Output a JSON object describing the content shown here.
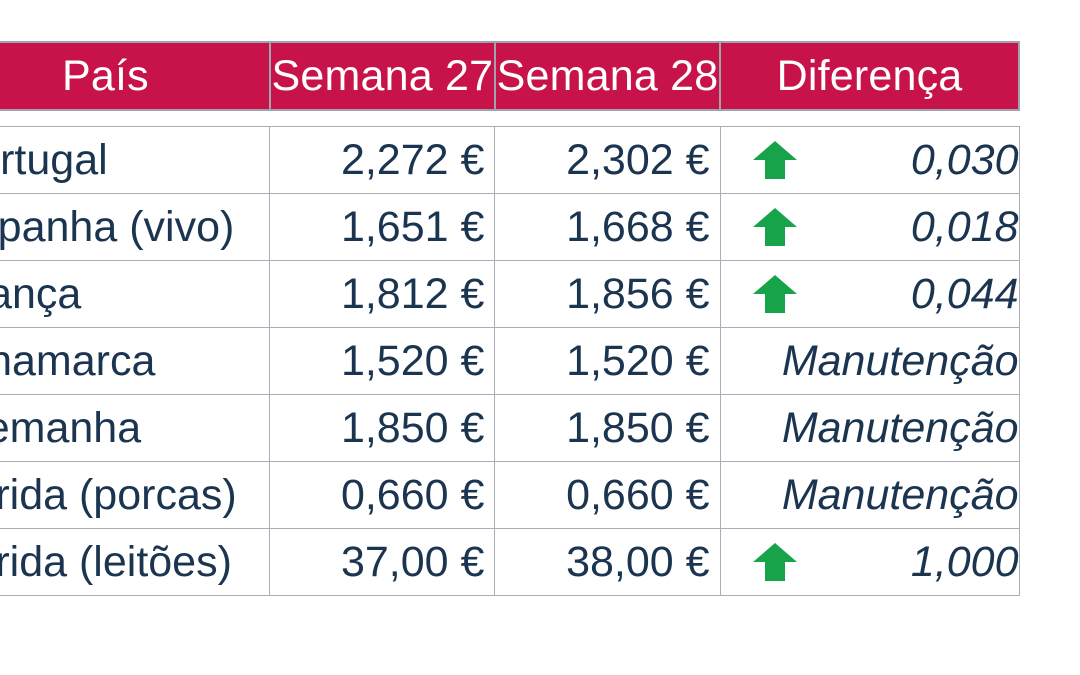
{
  "table": {
    "headers": [
      "País",
      "Semana 27",
      "Semana 28",
      "Diferença"
    ],
    "rows": [
      {
        "country": "Portugal",
        "week27": "2,272 €",
        "week28": "2,302 €",
        "trend": "up",
        "difference": "0,030"
      },
      {
        "country": "Espanha (vivo)",
        "week27": "1,651 €",
        "week28": "1,668 €",
        "trend": "up",
        "difference": "0,018"
      },
      {
        "country": "França",
        "week27": "1,812 €",
        "week28": "1,856 €",
        "trend": "up",
        "difference": "0,044"
      },
      {
        "country": "Dinamarca",
        "week27": "1,520 €",
        "week28": "1,520 €",
        "trend": "none",
        "difference": "Manutenção"
      },
      {
        "country": "Alemanha",
        "week27": "1,850 €",
        "week28": "1,850 €",
        "trend": "none",
        "difference": "Manutenção"
      },
      {
        "country": "Lérida (porcas)",
        "week27": "0,660 €",
        "week28": "0,660 €",
        "trend": "none",
        "difference": "Manutenção"
      },
      {
        "country": "Lérida (leitões)",
        "week27": "37,00 €",
        "week28": "38,00 €",
        "trend": "up",
        "difference": "1,000"
      }
    ]
  },
  "colors": {
    "header_bg": "#c8134a",
    "header_text": "#ffffff",
    "body_text": "#1b3550",
    "up_arrow": "#16a34a",
    "grid_line": "#a9adb8"
  },
  "icons": {
    "trend_up": "up-arrow-icon"
  }
}
